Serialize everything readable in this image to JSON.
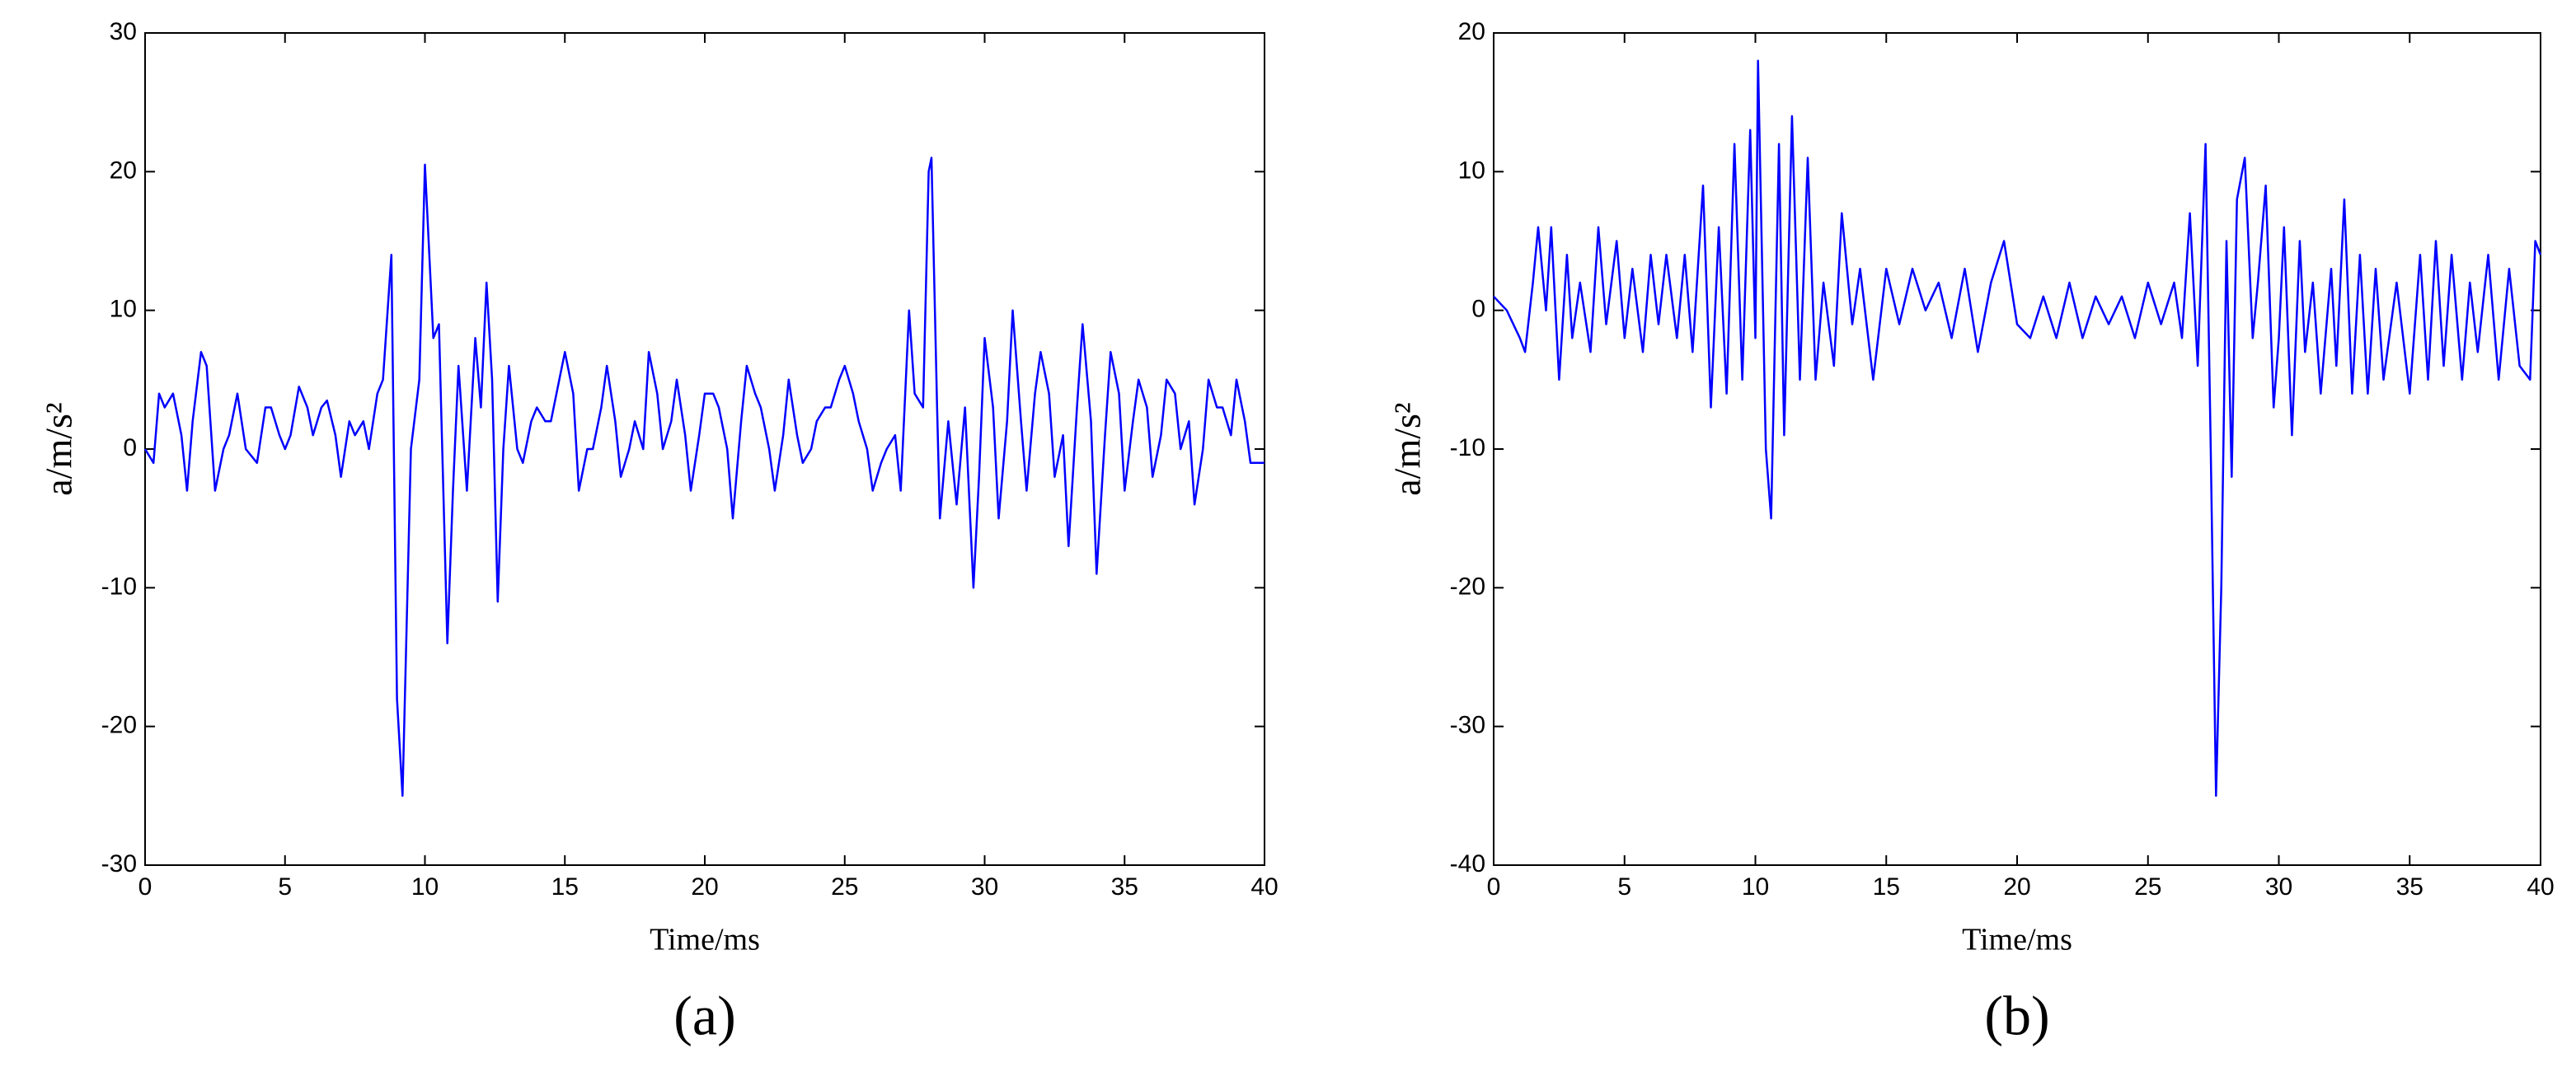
{
  "chart_data": [
    {
      "type": "line",
      "panel_label": "(a)",
      "xlabel": "Time/ms",
      "ylabel": "a/m/s²",
      "color": "#0000ff",
      "xlim": [
        0,
        40
      ],
      "xticks": [
        0,
        5,
        10,
        15,
        20,
        25,
        30,
        35,
        40
      ],
      "ylim": [
        -30,
        30
      ],
      "yticks": [
        -30,
        -20,
        -10,
        0,
        10,
        20,
        30
      ],
      "x": [
        0,
        0.3,
        0.5,
        0.7,
        1,
        1.3,
        1.5,
        1.7,
        2,
        2.2,
        2.5,
        2.8,
        3,
        3.3,
        3.6,
        4,
        4.3,
        4.5,
        4.8,
        5,
        5.2,
        5.5,
        5.8,
        6,
        6.3,
        6.5,
        6.8,
        7,
        7.3,
        7.5,
        7.8,
        8,
        8.3,
        8.5,
        8.8,
        9,
        9.2,
        9.5,
        9.8,
        10,
        10.3,
        10.5,
        10.8,
        11,
        11.2,
        11.5,
        11.8,
        12,
        12.2,
        12.4,
        12.6,
        12.8,
        13,
        13.3,
        13.5,
        13.8,
        14,
        14.3,
        14.5,
        14.8,
        15,
        15.3,
        15.5,
        15.8,
        16,
        16.3,
        16.5,
        16.8,
        17,
        17.3,
        17.5,
        17.8,
        18,
        18.3,
        18.5,
        18.8,
        19,
        19.3,
        19.5,
        19.8,
        20,
        20.3,
        20.5,
        20.8,
        21,
        21.3,
        21.5,
        21.8,
        22,
        22.3,
        22.5,
        22.8,
        23,
        23.3,
        23.5,
        23.8,
        24,
        24.3,
        24.5,
        24.8,
        25,
        25.3,
        25.5,
        25.8,
        26,
        26.3,
        26.5,
        26.8,
        27,
        27.3,
        27.5,
        27.8,
        28,
        28.1,
        28.3,
        28.4,
        28.7,
        29,
        29.3,
        29.6,
        29.8,
        30,
        30.3,
        30.5,
        30.8,
        31,
        31.3,
        31.5,
        31.8,
        32,
        32.3,
        32.5,
        32.8,
        33,
        33.3,
        33.5,
        33.8,
        34,
        34.3,
        34.5,
        34.8,
        35,
        35.3,
        35.5,
        35.8,
        36,
        36.3,
        36.5,
        36.8,
        37,
        37.3,
        37.5,
        37.8,
        38,
        38.3,
        38.5,
        38.8,
        39,
        39.3,
        39.5,
        39.8,
        40
      ],
      "values": [
        0,
        -1,
        4,
        3,
        4,
        1,
        -3,
        2,
        7,
        6,
        -3,
        0,
        1,
        4,
        0,
        -1,
        3,
        3,
        1,
        0,
        1,
        4.5,
        3,
        1,
        3,
        3.5,
        1,
        -2,
        2,
        1,
        2,
        0,
        4,
        5,
        14,
        -18,
        -25,
        0,
        5,
        20.5,
        8,
        9,
        -14,
        -3,
        6,
        -3,
        8,
        3,
        12,
        5,
        -11,
        0,
        6,
        0,
        -1,
        2,
        3,
        2,
        2,
        5,
        7,
        4,
        -3,
        0,
        0,
        3,
        6,
        2,
        -2,
        0,
        2,
        0,
        7,
        4,
        0,
        2,
        5,
        1,
        -3,
        1,
        4,
        4,
        3,
        0,
        -5,
        2,
        6,
        4,
        3,
        0,
        -3,
        1,
        5,
        1,
        -1,
        0,
        2,
        3,
        3,
        5,
        6,
        4,
        2,
        0,
        -3,
        -1,
        0,
        1,
        -3,
        10,
        4,
        3,
        20,
        21,
        3,
        -5,
        2,
        -4,
        3,
        -10,
        -2,
        8,
        3,
        -5,
        2,
        10,
        2,
        -3,
        4,
        7,
        4,
        -2,
        1,
        -7,
        3,
        9,
        2,
        -9,
        1,
        7,
        4,
        -3,
        2,
        5,
        3,
        -2,
        1,
        5,
        4,
        0,
        2,
        -4,
        0,
        5,
        3,
        3,
        1,
        5,
        2,
        -1,
        -1,
        -1
      ],
      "grid": false
    },
    {
      "type": "line",
      "panel_label": "(b)",
      "xlabel": "Time/ms",
      "ylabel": "a/m/s²",
      "color": "#0000ff",
      "xlim": [
        0,
        40
      ],
      "xticks": [
        0,
        5,
        10,
        15,
        20,
        25,
        30,
        35,
        40
      ],
      "ylim": [
        -40,
        20
      ],
      "yticks": [
        -40,
        -30,
        -20,
        -10,
        0,
        10,
        20
      ],
      "x": [
        0,
        0.5,
        1,
        1.2,
        1.5,
        1.7,
        2,
        2.2,
        2.5,
        2.8,
        3,
        3.3,
        3.7,
        4,
        4.3,
        4.7,
        5,
        5.3,
        5.7,
        6,
        6.3,
        6.6,
        7,
        7.3,
        7.6,
        8,
        8.3,
        8.6,
        8.9,
        9.2,
        9.5,
        9.8,
        10,
        10.1,
        10.4,
        10.6,
        10.9,
        11.1,
        11.4,
        11.7,
        12,
        12.3,
        12.6,
        13,
        13.3,
        13.7,
        14,
        14.5,
        15,
        15.5,
        16,
        16.5,
        17,
        17.5,
        18,
        18.5,
        19,
        19.5,
        20,
        20.5,
        21,
        21.5,
        22,
        22.5,
        23,
        23.5,
        24,
        24.5,
        25,
        25.5,
        26,
        26.3,
        26.6,
        26.9,
        27.2,
        27.4,
        27.6,
        27.8,
        28,
        28.2,
        28.4,
        28.7,
        29,
        29.2,
        29.5,
        29.8,
        30,
        30.2,
        30.5,
        30.8,
        31,
        31.3,
        31.6,
        32,
        32.2,
        32.5,
        32.8,
        33.1,
        33.4,
        33.7,
        34,
        34.5,
        35,
        35.4,
        35.7,
        36,
        36.3,
        36.6,
        37,
        37.3,
        37.6,
        38,
        38.4,
        38.8,
        39.2,
        39.6,
        39.8,
        40
      ],
      "values": [
        1,
        0,
        -2,
        -3,
        2,
        6,
        0,
        6,
        -5,
        4,
        -2,
        2,
        -3,
        6,
        -1,
        5,
        -2,
        3,
        -3,
        4,
        -1,
        4,
        -2,
        4,
        -3,
        9,
        -7,
        6,
        -6,
        12,
        -5,
        13,
        -2,
        18,
        -10,
        -15,
        12,
        -9,
        14,
        -5,
        11,
        -5,
        2,
        -4,
        7,
        -1,
        3,
        -5,
        3,
        -1,
        3,
        0,
        2,
        -2,
        3,
        -3,
        2,
        5,
        -1,
        -2,
        1,
        -2,
        2,
        -2,
        1,
        -1,
        1,
        -2,
        2,
        -1,
        2,
        -2,
        7,
        -4,
        12,
        -10,
        -35,
        -20,
        5,
        -12,
        8,
        11,
        -2,
        2,
        9,
        -7,
        -2,
        6,
        -9,
        5,
        -3,
        2,
        -6,
        3,
        -4,
        8,
        -6,
        4,
        -6,
        3,
        -5,
        2,
        -6,
        4,
        -5,
        5,
        -4,
        4,
        -5,
        2,
        -3,
        4,
        -5,
        3,
        -4,
        -5,
        5,
        4
      ],
      "grid": false
    }
  ]
}
